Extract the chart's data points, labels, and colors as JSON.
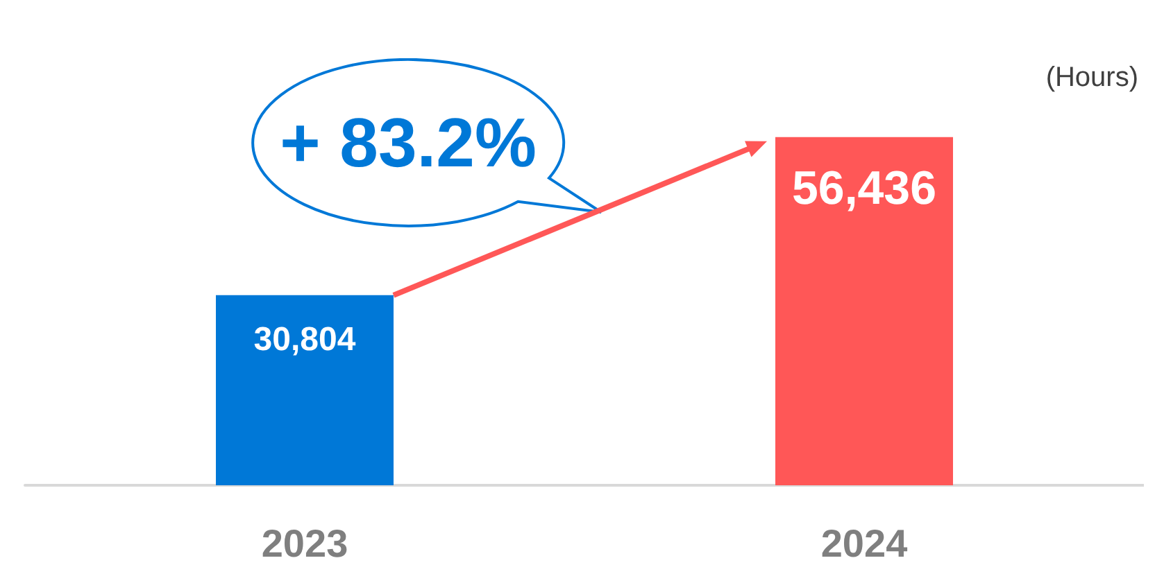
{
  "chart_data": {
    "type": "bar",
    "ylabel": "(Hours)",
    "categories": [
      "2023",
      "2024"
    ],
    "values": [
      30804,
      56436
    ],
    "value_labels": [
      "30,804",
      "56,436"
    ],
    "colors": [
      "#0078d7",
      "#ff5757"
    ],
    "annotations": [
      "+ 83.2%"
    ]
  }
}
